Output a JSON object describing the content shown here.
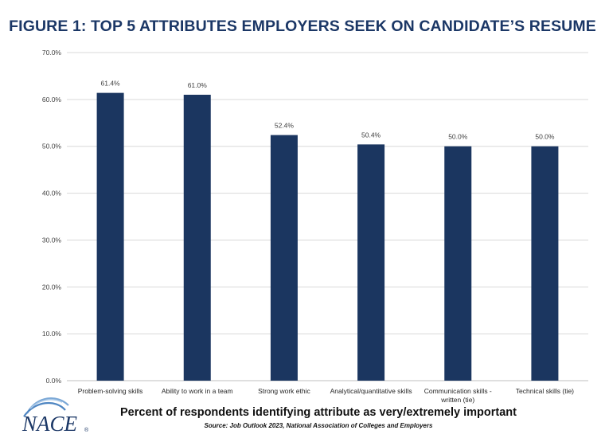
{
  "page_title": "FIGURE 1: TOP 5 ATTRIBUTES EMPLOYERS SEEK ON CANDIDATE’S RESUME",
  "footer": {
    "caption": "Percent of respondents identifying attribute as very/extremely important",
    "source": "Source: Job Outlook 2023, National Association of Colleges and Employers"
  },
  "logo": {
    "text": "NACE",
    "mark": "®"
  },
  "colors": {
    "bar": "#1b3660",
    "title": "#1b3766",
    "grid": "#d9d9d9",
    "axis": "#bfbfbf"
  },
  "chart_data": {
    "type": "bar",
    "categories": [
      [
        "Problem-solving skills"
      ],
      [
        "Ability to work in a team"
      ],
      [
        "Strong work ethic"
      ],
      [
        "Analytical/quantitative skills"
      ],
      [
        "Communication skills -",
        "written (tie)"
      ],
      [
        "Technical skills (tie)"
      ]
    ],
    "values": [
      61.4,
      61.0,
      52.4,
      50.4,
      50.0,
      50.0
    ],
    "data_labels": [
      "61.4%",
      "61.0%",
      "52.4%",
      "50.4%",
      "50.0%",
      "50.0%"
    ],
    "y_ticks": [
      0,
      10,
      20,
      30,
      40,
      50,
      60,
      70
    ],
    "y_tick_labels": [
      "0.0%",
      "10.0%",
      "20.0%",
      "30.0%",
      "40.0%",
      "50.0%",
      "60.0%",
      "70.0%"
    ],
    "ylim": [
      0,
      70
    ],
    "grid": true,
    "legend": "none"
  }
}
